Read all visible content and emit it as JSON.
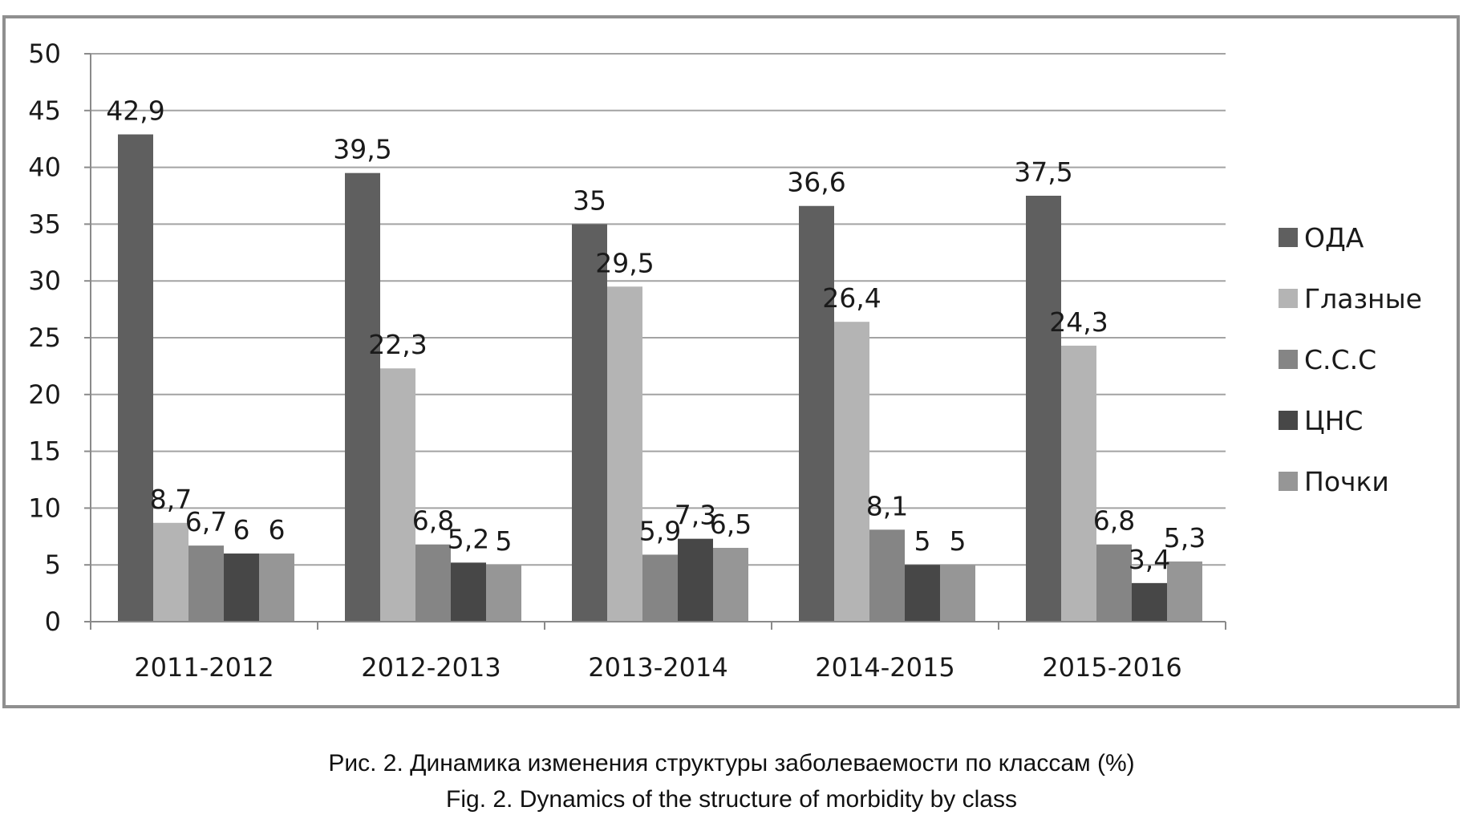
{
  "chart_data": {
    "type": "bar",
    "categories": [
      "2011-2012",
      "2012-2013",
      "2013-2014",
      "2014-2015",
      "2015-2016"
    ],
    "series": [
      {
        "name": "ОДА",
        "values": [
          42.9,
          39.5,
          35,
          36.6,
          37.5
        ],
        "labels": [
          "42,9",
          "39,5",
          "35",
          "36,6",
          "37,5"
        ],
        "color": "#5f5f5f"
      },
      {
        "name": "Глазные",
        "values": [
          8.7,
          22.3,
          29.5,
          26.4,
          24.3
        ],
        "labels": [
          "8,7",
          "22,3",
          "29,5",
          "26,4",
          "24,3"
        ],
        "color": "#b4b4b4"
      },
      {
        "name": "С.С.С",
        "values": [
          6.7,
          6.8,
          5.9,
          8.1,
          6.8
        ],
        "labels": [
          "6,7",
          "6,8",
          "5,9",
          "8,1",
          "6,8"
        ],
        "color": "#858585"
      },
      {
        "name": "ЦНС",
        "values": [
          6,
          5.2,
          7.3,
          5,
          3.4
        ],
        "labels": [
          "6",
          "5,2",
          "7,3",
          "5",
          "3,4"
        ],
        "color": "#474747"
      },
      {
        "name": "Почки",
        "values": [
          6,
          5,
          6.5,
          5,
          5.3
        ],
        "labels": [
          "6",
          "5",
          "6,5",
          "5",
          "5,3"
        ],
        "color": "#969696"
      }
    ],
    "yticks": [
      "0",
      "5",
      "10",
      "15",
      "20",
      "25",
      "30",
      "35",
      "40",
      "45",
      "50"
    ],
    "ylim": [
      0,
      50
    ],
    "grid": true,
    "legend_position": "right"
  },
  "captions": {
    "ru": "Рис. 2. Динамика изменения структуры заболеваемости по классам (%)",
    "en": "Fig. 2. Dynamics of the structure of morbidity by class"
  }
}
